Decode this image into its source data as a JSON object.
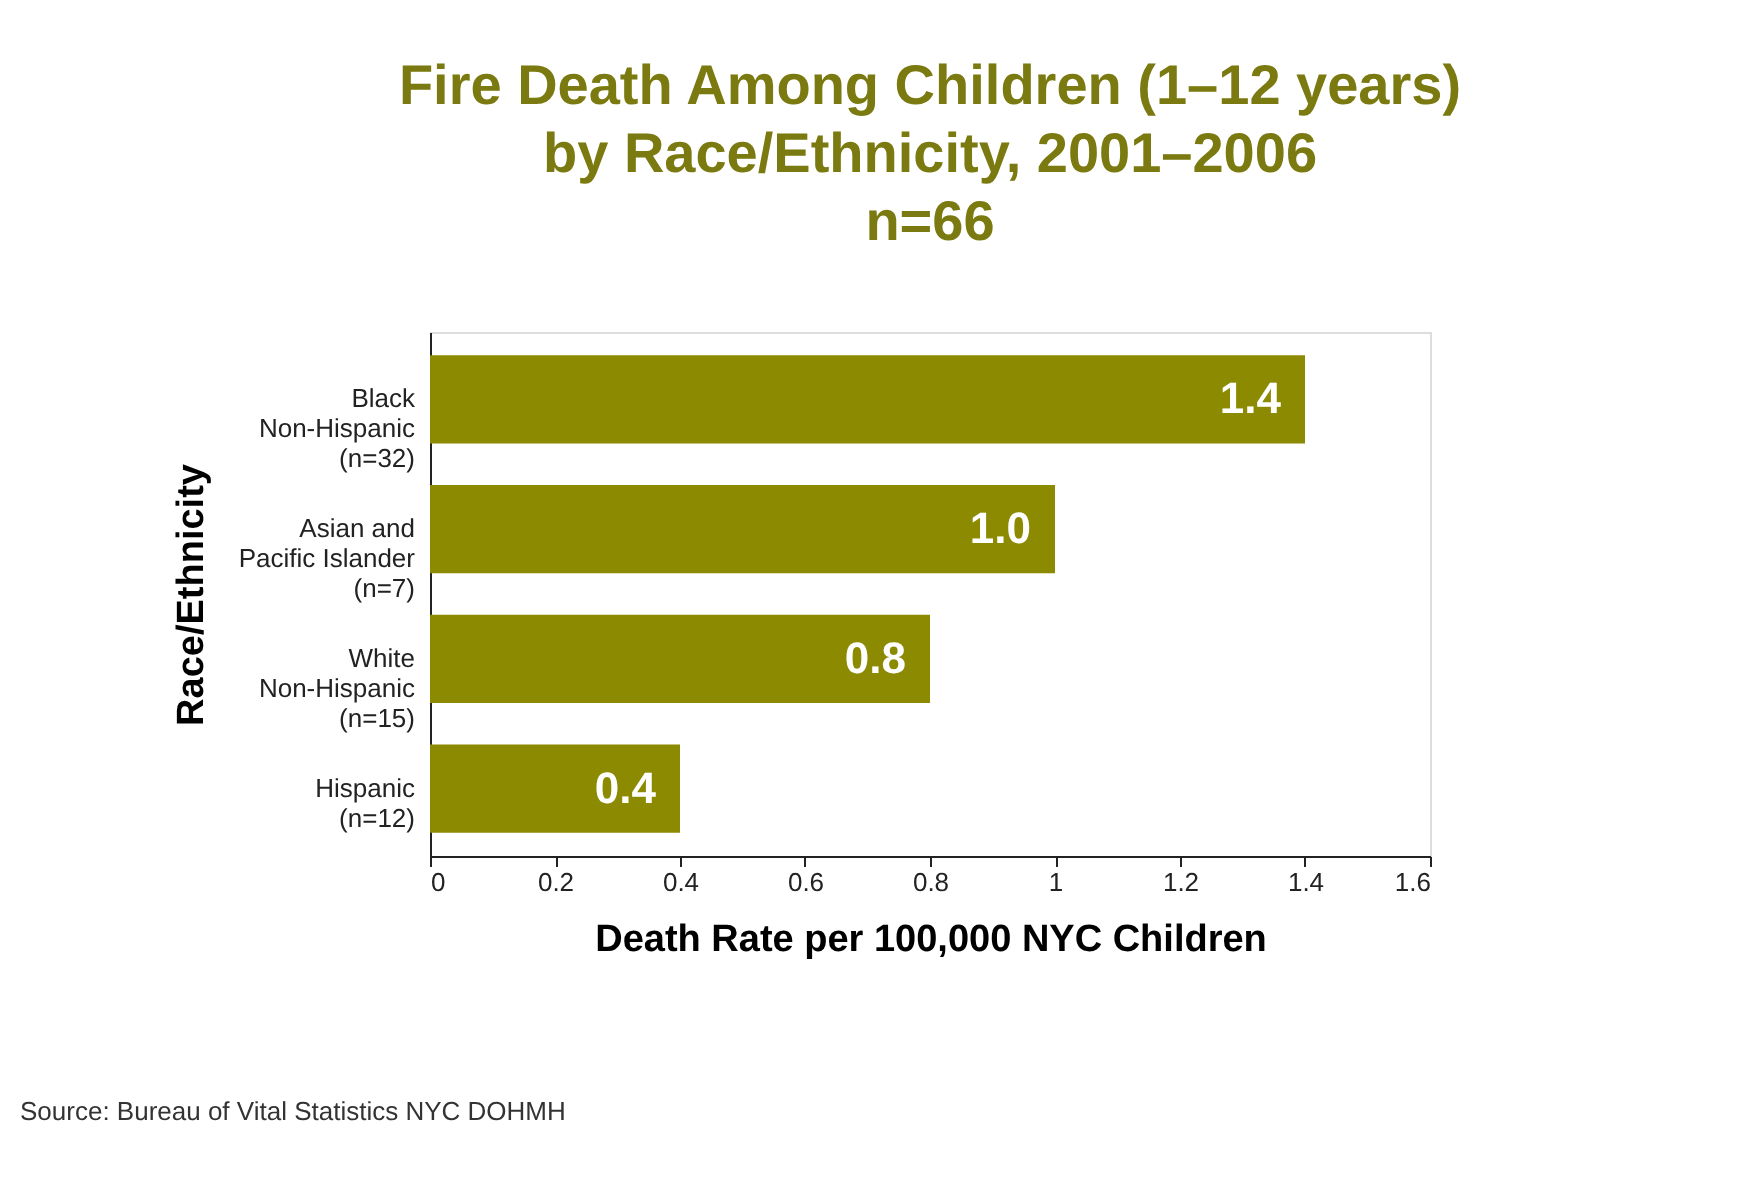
{
  "chart_data": {
    "type": "bar",
    "orientation": "horizontal",
    "title": "Fire Death Among Children (1–12 years)\nby Race/Ethnicity, 2001–2006\nn=66",
    "categories": [
      "Black\nNon-Hispanic\n(n=32)",
      "Asian and\nPacific Islander\n(n=7)",
      "White\nNon-Hispanic\n(n=15)",
      "Hispanic\n(n=12)"
    ],
    "values": [
      1.4,
      1.0,
      0.8,
      0.4
    ],
    "value_labels": [
      "1.4",
      "1.0",
      "0.8",
      "0.4"
    ],
    "color": "#8b8a00",
    "xlim": [
      0,
      1.6
    ],
    "xticks": [
      0,
      0.2,
      0.4,
      0.6,
      0.8,
      1,
      1.2,
      1.4,
      1.6
    ],
    "xlabel": "Death Rate per 100,000 NYC Children",
    "ylabel": "Race/Ethnicity",
    "grid": false,
    "annotations": [
      "Source: Bureau of Vital Statistics NYC DOHMH"
    ]
  }
}
